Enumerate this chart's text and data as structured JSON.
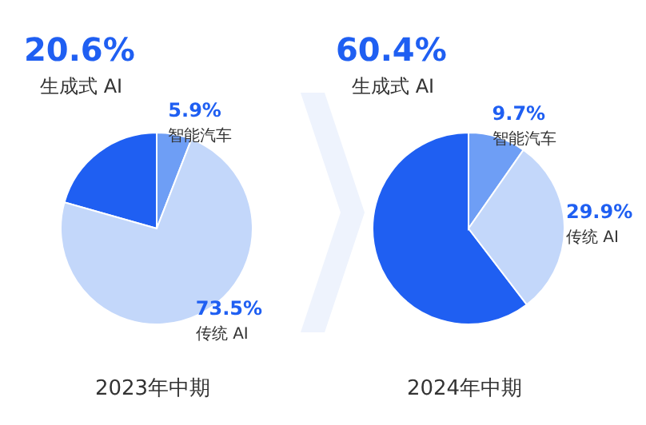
{
  "chart_data": [
    {
      "type": "pie",
      "title": "2023年中期",
      "categories": [
        "生成式 AI",
        "智能汽车",
        "传统 AI"
      ],
      "values": [
        20.6,
        5.9,
        73.5
      ],
      "value_labels": [
        "20.6%",
        "5.9%",
        "73.5%"
      ],
      "colors": [
        "#1f5ff2",
        "#6e9ef5",
        "#c3d7fa"
      ]
    },
    {
      "type": "pie",
      "title": "2024年中期",
      "categories": [
        "生成式 AI",
        "智能汽车",
        "传统 AI"
      ],
      "values": [
        60.4,
        9.7,
        29.9
      ],
      "value_labels": [
        "60.4%",
        "9.7%",
        "29.9%"
      ],
      "colors": [
        "#1f5ff2",
        "#6e9ef5",
        "#c3d7fa"
      ]
    }
  ]
}
